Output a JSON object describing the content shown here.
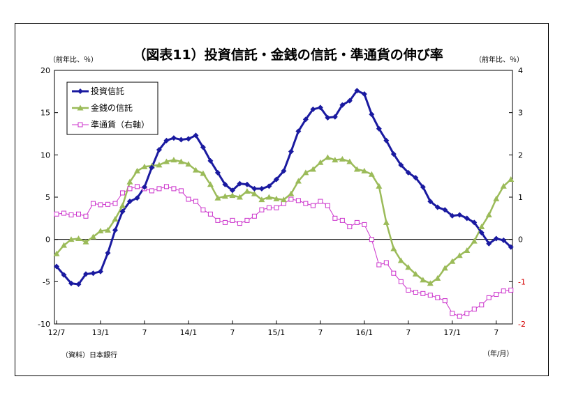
{
  "title": "（図表11）投資信託・金銭の信託・準通貨の伸び率",
  "left_unit": "（前年比、％）",
  "right_unit": "（前年比、％）",
  "source": "（資料）日本銀行",
  "x_unit": "（年/月）",
  "colors": {
    "investment_trust": "#1a1aa0",
    "money_trust": "#9bbb59",
    "quasi_money": "#cc33cc",
    "negative_tick": "#d40000"
  },
  "chart_data": {
    "type": "line",
    "x_tick_labels": [
      "12/7",
      "13/1",
      "7",
      "14/1",
      "7",
      "15/1",
      "7",
      "16/1",
      "7",
      "17/1",
      "7"
    ],
    "x_tick_month_index": [
      0,
      6,
      12,
      18,
      24,
      30,
      36,
      42,
      48,
      54,
      60
    ],
    "y_left": {
      "min": -10,
      "max": 20,
      "step": 5,
      "ticks": [
        "20",
        "15",
        "10",
        "5",
        "0",
        "-5",
        "-10"
      ]
    },
    "y_right": {
      "min": -2,
      "max": 4,
      "step": 1,
      "ticks": [
        "4",
        "3",
        "2",
        "1",
        "0",
        "-1",
        "-2"
      ]
    },
    "gridlines": false,
    "legend_position": "top-left",
    "series": [
      {
        "name": "投資信託",
        "axis": "left",
        "marker": "diamond",
        "values": [
          -3.2,
          -4.2,
          -5.2,
          -5.3,
          -4.1,
          -4.0,
          -3.8,
          -1.6,
          1.1,
          3.3,
          4.5,
          4.9,
          6.2,
          8.5,
          10.6,
          11.7,
          12.0,
          11.8,
          11.9,
          12.3,
          10.9,
          9.3,
          7.9,
          6.5,
          5.8,
          6.6,
          6.5,
          6.0,
          6.0,
          6.3,
          7.1,
          8.1,
          10.4,
          12.8,
          14.2,
          15.4,
          15.6,
          14.4,
          14.5,
          15.9,
          16.4,
          17.6,
          17.2,
          14.8,
          13.1,
          11.7,
          10.1,
          8.8,
          7.9,
          7.3,
          6.2,
          4.5,
          3.8,
          3.5,
          2.8,
          2.9,
          2.5,
          2.0,
          0.8,
          -0.5,
          0.1,
          -0.1,
          -0.9
        ]
      },
      {
        "name": "金銭の信託",
        "axis": "left",
        "marker": "triangle",
        "values": [
          -1.7,
          -0.7,
          0.0,
          0.1,
          -0.3,
          0.3,
          1.0,
          1.1,
          2.4,
          4.0,
          6.8,
          8.1,
          8.6,
          8.7,
          8.8,
          9.2,
          9.4,
          9.2,
          8.9,
          8.2,
          7.8,
          6.5,
          4.9,
          5.1,
          5.2,
          5.0,
          5.7,
          5.4,
          4.7,
          5.0,
          4.8,
          4.7,
          5.4,
          6.9,
          7.9,
          8.3,
          9.1,
          9.7,
          9.4,
          9.5,
          9.2,
          8.3,
          8.1,
          7.7,
          6.3,
          2.0,
          -1.1,
          -2.5,
          -3.3,
          -4.1,
          -4.8,
          -5.2,
          -4.6,
          -3.4,
          -2.6,
          -1.9,
          -1.3,
          -0.2,
          1.5,
          2.9,
          4.8,
          6.3,
          7.1
        ]
      },
      {
        "name": "準通貨（右軸）",
        "axis": "right",
        "marker": "square",
        "values": [
          0.6,
          0.62,
          0.58,
          0.6,
          0.55,
          0.85,
          0.82,
          0.83,
          0.85,
          1.1,
          1.2,
          1.25,
          1.2,
          1.15,
          1.2,
          1.25,
          1.2,
          1.15,
          0.95,
          0.9,
          0.7,
          0.6,
          0.45,
          0.4,
          0.45,
          0.38,
          0.45,
          0.55,
          0.7,
          0.75,
          0.75,
          0.85,
          0.95,
          0.92,
          0.85,
          0.8,
          0.9,
          0.8,
          0.5,
          0.45,
          0.3,
          0.4,
          0.35,
          0.0,
          -0.6,
          -0.55,
          -0.8,
          -1.0,
          -1.2,
          -1.25,
          -1.28,
          -1.32,
          -1.38,
          -1.45,
          -1.75,
          -1.82,
          -1.75,
          -1.65,
          -1.55,
          -1.38,
          -1.3,
          -1.22,
          -1.2
        ]
      }
    ]
  }
}
